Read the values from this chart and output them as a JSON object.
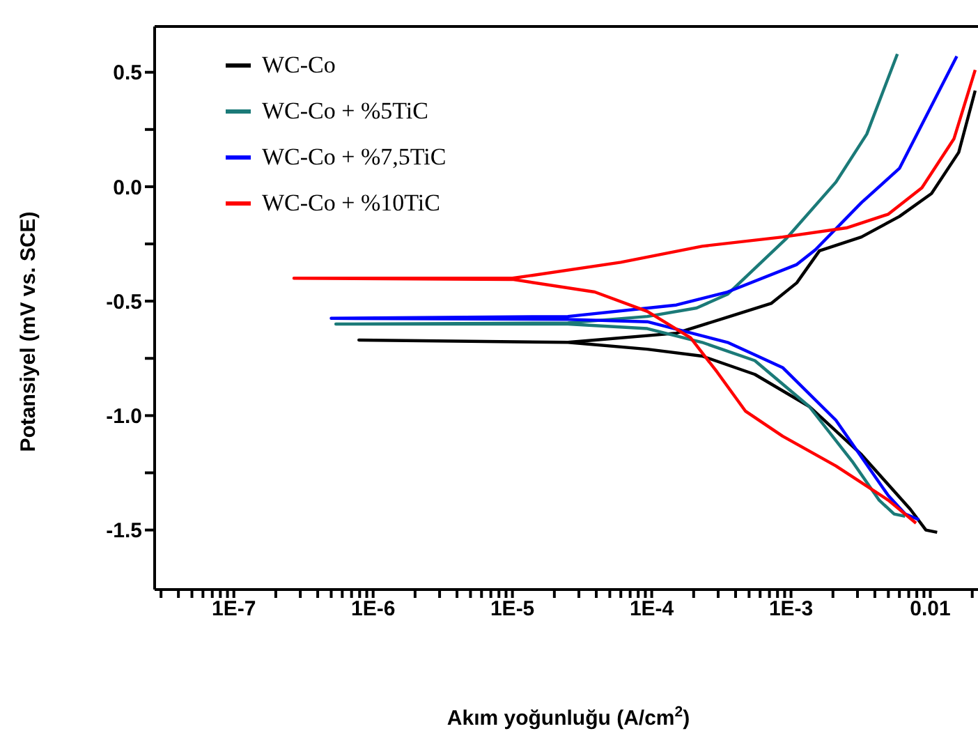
{
  "chart_data": {
    "type": "line",
    "xlabel": "Akım yoğunluğu (A/cm$^{2}$)",
    "ylabel": "Potansiyel (mV vs. SCE)",
    "log": "x",
    "legend": "top left",
    "marker": "none",
    "line_style": "solid",
    "xlim": [
      2.7e-08,
      0.022
    ],
    "ylim": [
      -1.76,
      0.7
    ],
    "xticks": [
      {
        "value": 3e-08,
        "label": null
      },
      {
        "value": 4e-08,
        "label": null
      },
      {
        "value": 5e-08,
        "label": null
      },
      {
        "value": 6e-08,
        "label": null
      },
      {
        "value": 7e-08,
        "label": null
      },
      {
        "value": 8e-08,
        "label": null
      },
      {
        "value": 9e-08,
        "label": null
      },
      {
        "value": 1e-07,
        "label": "1E-7"
      },
      {
        "value": 2e-07,
        "label": null
      },
      {
        "value": 3e-07,
        "label": null
      },
      {
        "value": 4e-07,
        "label": null
      },
      {
        "value": 5e-07,
        "label": null
      },
      {
        "value": 6e-07,
        "label": null
      },
      {
        "value": 7e-07,
        "label": null
      },
      {
        "value": 8e-07,
        "label": null
      },
      {
        "value": 9e-07,
        "label": null
      },
      {
        "value": 1e-06,
        "label": "1E-6"
      },
      {
        "value": 2e-06,
        "label": null
      },
      {
        "value": 3e-06,
        "label": null
      },
      {
        "value": 4e-06,
        "label": null
      },
      {
        "value": 5e-06,
        "label": null
      },
      {
        "value": 6e-06,
        "label": null
      },
      {
        "value": 7e-06,
        "label": null
      },
      {
        "value": 8e-06,
        "label": null
      },
      {
        "value": 9e-06,
        "label": null
      },
      {
        "value": 1e-05,
        "label": "1E-5"
      },
      {
        "value": 2e-05,
        "label": null
      },
      {
        "value": 3e-05,
        "label": null
      },
      {
        "value": 4e-05,
        "label": null
      },
      {
        "value": 5e-05,
        "label": null
      },
      {
        "value": 6e-05,
        "label": null
      },
      {
        "value": 7e-05,
        "label": null
      },
      {
        "value": 8e-05,
        "label": null
      },
      {
        "value": 9e-05,
        "label": null
      },
      {
        "value": 0.0001,
        "label": "1E-4"
      },
      {
        "value": 0.0002,
        "label": null
      },
      {
        "value": 0.0003,
        "label": null
      },
      {
        "value": 0.0004,
        "label": null
      },
      {
        "value": 0.0005,
        "label": null
      },
      {
        "value": 0.0006,
        "label": null
      },
      {
        "value": 0.0007,
        "label": null
      },
      {
        "value": 0.0008,
        "label": null
      },
      {
        "value": 0.0009,
        "label": null
      },
      {
        "value": 0.001,
        "label": "1E-3"
      },
      {
        "value": 0.002,
        "label": null
      },
      {
        "value": 0.003,
        "label": null
      },
      {
        "value": 0.004,
        "label": null
      },
      {
        "value": 0.005,
        "label": null
      },
      {
        "value": 0.006,
        "label": null
      },
      {
        "value": 0.007,
        "label": null
      },
      {
        "value": 0.008,
        "label": null
      },
      {
        "value": 0.009,
        "label": null
      },
      {
        "value": 0.01,
        "label": "0.01"
      },
      {
        "value": 0.02,
        "label": null
      }
    ],
    "yticks": [
      {
        "value": -1.5,
        "label": "-1.5"
      },
      {
        "value": -1.25,
        "label": null
      },
      {
        "value": -1,
        "label": "-1.0"
      },
      {
        "value": -0.75,
        "label": null
      },
      {
        "value": -0.5,
        "label": "-0.5"
      },
      {
        "value": -0.25,
        "label": null
      },
      {
        "value": 0,
        "label": "0.0"
      },
      {
        "value": 0.25,
        "label": null
      },
      {
        "value": 0.5,
        "label": "0.5"
      }
    ],
    "series": [
      {
        "name": "WC-Co",
        "color": "#000000",
        "x": [
          0.0112,
          0.0093,
          0.0072,
          0.0032,
          0.00135,
          0.00055,
          0.00023,
          9.3e-05,
          2.5e-05,
          7.9e-07,
          2.5e-05,
          0.00015,
          0.00035,
          0.00072,
          0.0011,
          0.0016,
          0.0032,
          0.006,
          0.0102,
          0.016,
          0.021
        ],
        "values": [
          -1.51,
          -1.5,
          -1.41,
          -1.17,
          -0.96,
          -0.82,
          -0.74,
          -0.71,
          -0.68,
          -0.67,
          -0.68,
          -0.64,
          -0.57,
          -0.51,
          -0.42,
          -0.28,
          -0.22,
          -0.13,
          -0.03,
          0.15,
          0.42
        ]
      },
      {
        "name": "WC-Co + %5TiC",
        "color": "#1b7a78",
        "x": [
          0.0066,
          0.0055,
          0.0043,
          0.00275,
          0.00135,
          0.00055,
          0.00023,
          9.3e-05,
          2.5e-05,
          5.4e-07,
          2.5e-05,
          9.3e-05,
          0.00021,
          0.00035,
          0.00093,
          0.0021,
          0.0035,
          0.0058
        ],
        "values": [
          -1.44,
          -1.43,
          -1.37,
          -1.2,
          -0.96,
          -0.76,
          -0.68,
          -0.62,
          -0.6,
          -0.6,
          -0.595,
          -0.567,
          -0.53,
          -0.47,
          -0.225,
          0.02,
          0.23,
          0.58
        ]
      },
      {
        "name": "WC-Co + %7,5TiC",
        "color": "#0000ff",
        "x": [
          0.0083,
          0.0066,
          0.005,
          0.0021,
          0.00087,
          0.00035,
          9.3e-05,
          2.5e-05,
          5e-07,
          2.5e-05,
          0.00015,
          0.00035,
          0.0011,
          0.0015,
          0.0032,
          0.006,
          0.0155
        ],
        "values": [
          -1.455,
          -1.43,
          -1.35,
          -1.02,
          -0.79,
          -0.68,
          -0.59,
          -0.58,
          -0.575,
          -0.567,
          -0.517,
          -0.46,
          -0.34,
          -0.275,
          -0.07,
          0.08,
          0.57
        ]
      },
      {
        "name": "WC-Co + %10TiC",
        "color": "#ff0000",
        "x": [
          0.0079,
          0.005,
          0.0021,
          0.00087,
          0.00047,
          0.000295,
          0.00019,
          9.3e-05,
          3.9e-05,
          1e-05,
          2.7e-07,
          1e-05,
          6e-05,
          0.00023,
          0.00087,
          0.0025,
          0.005,
          0.0087,
          0.0148,
          0.021
        ],
        "values": [
          -1.47,
          -1.37,
          -1.22,
          -1.09,
          -0.98,
          -0.81,
          -0.66,
          -0.545,
          -0.46,
          -0.405,
          -0.4,
          -0.4,
          -0.33,
          -0.26,
          -0.22,
          -0.18,
          -0.12,
          -0.005,
          0.21,
          0.51
        ]
      }
    ]
  }
}
